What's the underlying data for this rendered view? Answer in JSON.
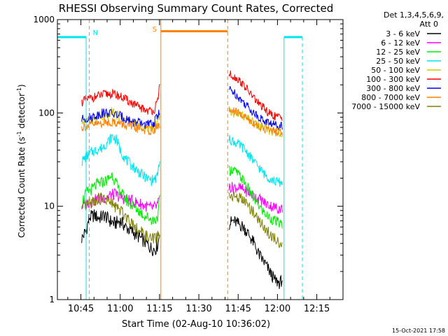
{
  "title": "RHESSI Observing Summary Count Rates, Corrected",
  "ylabel": {
    "main": "Corrected Count Rate (s",
    "sup1": "-1",
    "mid": " detector",
    "sup2": "-1",
    "end": ")"
  },
  "xlabel": "Start Time (02-Aug-10 10:36:02)",
  "timestamp": "15-Oct-2021 17:58",
  "legend": {
    "header_line1": "Det 1,3,4,5,6,9,",
    "header_line2": "Att 0"
  },
  "chart_data": {
    "type": "line",
    "title": "RHESSI Observing Summary Count Rates, Corrected",
    "xlabel": "Start Time (02-Aug-10 10:36:02)",
    "ylabel": "Corrected Count Rate (s-1 detector-1)",
    "yscale": "log",
    "ylim": [
      1,
      1000
    ],
    "xlim_minutes": [
      36.03,
      145.0
    ],
    "x_ticks": [
      {
        "label": "10:45",
        "minutes": 45
      },
      {
        "label": "11:00",
        "minutes": 60
      },
      {
        "label": "11:15",
        "minutes": 75
      },
      {
        "label": "11:30",
        "minutes": 90
      },
      {
        "label": "11:45",
        "minutes": 105
      },
      {
        "label": "12:00",
        "minutes": 120
      },
      {
        "label": "12:15",
        "minutes": 135
      }
    ],
    "y_ticks": [
      {
        "label": "1",
        "value": 1
      },
      {
        "label": "10",
        "value": 10
      },
      {
        "label": "100",
        "value": 100
      },
      {
        "label": "1000",
        "value": 1000
      }
    ],
    "markers": [
      {
        "label": "N",
        "start": 48.2,
        "end": 133.0,
        "level": 650,
        "color": "#00e5ee"
      },
      {
        "label": "S",
        "start": 75.5,
        "end": 101.0,
        "level": 750,
        "color": "#ff8000"
      }
    ],
    "series": [
      {
        "name": "3 - 6 keV",
        "color": "#000000",
        "x": [
          45.3,
          47,
          48.2,
          50,
          52,
          54,
          56,
          58,
          60,
          62,
          64,
          66,
          68,
          70,
          72,
          73.5,
          74.5,
          75.2
        ],
        "y": [
          4.5,
          5.5,
          7.5,
          8,
          7.5,
          8,
          7,
          6.5,
          7,
          6,
          5.5,
          5,
          4.5,
          4,
          3.5,
          3.5,
          4,
          6
        ]
      },
      {
        "name": "3 - 6 keV b",
        "color": "#000000",
        "x": [
          101.5,
          103,
          105,
          107,
          109,
          111,
          113,
          115,
          117,
          119,
          121,
          122
        ],
        "y": [
          6.5,
          7,
          6.5,
          6,
          5,
          4,
          3,
          2.5,
          2,
          1.6,
          1.5,
          1.7
        ]
      },
      {
        "name": "6 - 12 keV",
        "color": "#ff00ff",
        "x": [
          45.3,
          48,
          50,
          52,
          54,
          56,
          58,
          60,
          62,
          64,
          66,
          68,
          70,
          72,
          74,
          75.2
        ],
        "y": [
          10,
          11,
          11.5,
          12,
          12.5,
          13,
          13.5,
          12.5,
          12,
          11.5,
          11,
          10.5,
          10,
          9.5,
          10,
          12
        ]
      },
      {
        "name": "6 - 12 keV b",
        "color": "#ff00ff",
        "x": [
          101.5,
          104,
          106,
          108,
          110,
          112,
          114,
          116,
          118,
          120,
          122
        ],
        "y": [
          16,
          16,
          15.5,
          14.5,
          13.5,
          12.5,
          11.5,
          10.5,
          10,
          9.5,
          9.5
        ]
      },
      {
        "name": "12 - 25 keV",
        "color": "#00ee00",
        "x": [
          45.3,
          47,
          49,
          51,
          53,
          55,
          57,
          59,
          61,
          63,
          65,
          67,
          69,
          71,
          73,
          74.5,
          75.2
        ],
        "y": [
          11,
          14,
          15,
          17,
          18,
          19,
          22,
          16,
          13,
          11,
          10,
          9,
          8,
          7.5,
          7,
          8,
          14
        ]
      },
      {
        "name": "12 - 25 keV b",
        "color": "#00ee00",
        "x": [
          101.5,
          103,
          105,
          107,
          109,
          111,
          113,
          115,
          117,
          119,
          121,
          122
        ],
        "y": [
          24,
          25,
          22,
          19,
          15,
          12,
          10,
          8.5,
          7.5,
          7,
          6.5,
          6.5
        ]
      },
      {
        "name": "25 - 50 keV",
        "color": "#00e5ee",
        "x": [
          45.3,
          47,
          49,
          51,
          53,
          55,
          57,
          58.5,
          60,
          62,
          64,
          66,
          68,
          70,
          72,
          74,
          75.2
        ],
        "y": [
          30,
          34,
          38,
          40,
          42,
          48,
          56,
          52,
          40,
          32,
          28,
          25,
          22,
          20,
          19,
          20,
          32
        ]
      },
      {
        "name": "25 - 50 keV b",
        "color": "#00e5ee",
        "x": [
          101.5,
          103,
          105,
          107,
          109,
          111,
          113,
          115,
          117,
          119,
          121,
          122
        ],
        "y": [
          52,
          50,
          46,
          42,
          36,
          30,
          26,
          22,
          20,
          18.5,
          18,
          18
        ]
      },
      {
        "name": "50 - 100 keV",
        "color": "#cccc00",
        "x": [
          45.3,
          47,
          49,
          51,
          53,
          55,
          57,
          58.5,
          60,
          62,
          64,
          66,
          68,
          70,
          72,
          74,
          75.2
        ],
        "y": [
          80,
          82,
          85,
          88,
          90,
          92,
          105,
          95,
          90,
          85,
          80,
          75,
          72,
          68,
          70,
          78,
          100
        ]
      },
      {
        "name": "50 - 100 keV b",
        "color": "#cccc00",
        "x": [
          101.5,
          103,
          105,
          107,
          109,
          111,
          113,
          115,
          117,
          119,
          121,
          122
        ],
        "y": [
          100,
          100,
          98,
          92,
          85,
          78,
          72,
          68,
          65,
          63,
          62,
          62
        ]
      },
      {
        "name": "100 - 300 keV",
        "color": "#ff0000",
        "x": [
          45.3,
          47,
          49,
          51,
          53,
          55,
          57,
          59,
          61,
          63,
          65,
          67,
          69,
          71,
          73,
          74.5,
          75.2
        ],
        "y": [
          130,
          140,
          145,
          150,
          155,
          160,
          160,
          155,
          145,
          135,
          125,
          115,
          110,
          105,
          108,
          135,
          240
        ]
      },
      {
        "name": "100 - 300 keV b",
        "color": "#ff0000",
        "x": [
          101.5,
          103,
          105,
          107,
          109,
          111,
          113,
          115,
          117,
          119,
          121,
          122
        ],
        "y": [
          260,
          250,
          230,
          200,
          170,
          145,
          125,
          110,
          98,
          92,
          90,
          90
        ]
      },
      {
        "name": "300 - 800 keV",
        "color": "#0000ff",
        "x": [
          45.3,
          47,
          49,
          51,
          53,
          55,
          57,
          59,
          61,
          63,
          65,
          67,
          69,
          71,
          73,
          75.2
        ],
        "y": [
          85,
          88,
          90,
          95,
          100,
          100,
          98,
          95,
          90,
          85,
          80,
          78,
          76,
          75,
          78,
          110
        ]
      },
      {
        "name": "300 - 800 keV b",
        "color": "#0000ff",
        "x": [
          101.5,
          103,
          105,
          107,
          109,
          111,
          113,
          115,
          117,
          119,
          121,
          122
        ],
        "y": [
          180,
          170,
          150,
          130,
          115,
          100,
          90,
          82,
          78,
          75,
          74,
          74
        ]
      },
      {
        "name": "800 - 7000 keV",
        "color": "#ff8000",
        "x": [
          45.3,
          47,
          49,
          51,
          53,
          55,
          57,
          59,
          61,
          63,
          65,
          67,
          69,
          71,
          73,
          75.2
        ],
        "y": [
          70,
          72,
          74,
          76,
          78,
          80,
          80,
          78,
          75,
          72,
          70,
          68,
          66,
          65,
          66,
          75
        ]
      },
      {
        "name": "800 - 7000 keV b",
        "color": "#ff8000",
        "x": [
          101.5,
          103,
          105,
          107,
          109,
          111,
          113,
          115,
          117,
          119,
          121,
          122
        ],
        "y": [
          105,
          105,
          100,
          92,
          85,
          78,
          72,
          68,
          65,
          63,
          62,
          62
        ]
      },
      {
        "name": "7000 - 15000 keV",
        "color": "#808000",
        "x": [
          45.3,
          47,
          49,
          51,
          53,
          55,
          57,
          59,
          61,
          63,
          65,
          67,
          69,
          71,
          73,
          75.2
        ],
        "y": [
          9,
          10,
          11,
          12,
          12,
          11.5,
          10.5,
          9.5,
          8.5,
          7.5,
          6.5,
          5.5,
          5,
          4.5,
          4.5,
          5
        ]
      },
      {
        "name": "7000 - 15000 keV b",
        "color": "#808000",
        "x": [
          101.5,
          103,
          105,
          107,
          109,
          111,
          113,
          115,
          117,
          119,
          121,
          122
        ],
        "y": [
          13,
          13,
          12.5,
          11.5,
          10,
          8.5,
          7,
          6,
          5,
          4.5,
          4,
          4
        ]
      }
    ],
    "legend_entries": [
      {
        "name": "3 - 6 keV",
        "color": "#000000"
      },
      {
        "name": "6 - 12 keV",
        "color": "#ff00ff"
      },
      {
        "name": "12 - 25 keV",
        "color": "#00ee00"
      },
      {
        "name": "25 - 50 keV",
        "color": "#00e5ee"
      },
      {
        "name": "50 - 100 keV",
        "color": "#cccc00"
      },
      {
        "name": "100 - 300 keV",
        "color": "#ff0000"
      },
      {
        "name": "300 - 800 keV",
        "color": "#0000ff"
      },
      {
        "name": "800 - 7000 keV",
        "color": "#ff8000"
      },
      {
        "name": "7000 - 15000 keV",
        "color": "#808000"
      }
    ],
    "legend_position": "top-right",
    "grid": false
  }
}
